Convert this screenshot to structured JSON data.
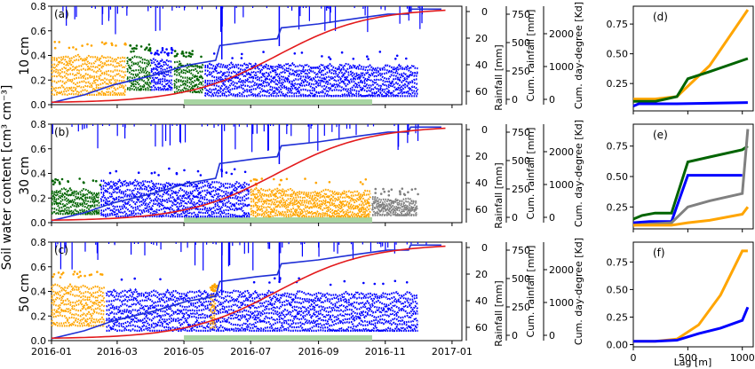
{
  "figure": {
    "shared_ylabel": "Soil water content [cm³ cm⁻³]",
    "shared_xlabel": "Lag [m]"
  },
  "chart_data": [
    {
      "type": "scatter",
      "panel": "(a)",
      "depth_label": "10 cm",
      "x_ticks": [
        "2016-01",
        "2016-03",
        "2016-05",
        "2016-07",
        "2016-09",
        "2016-11",
        "2017-01"
      ],
      "ylim": [
        0,
        0.8
      ],
      "y_ticks": [
        "0.0",
        "0.2",
        "0.4",
        "0.6",
        "0.8"
      ],
      "rain_axis": {
        "label": "Rainfall [mm]",
        "ticks": [
          "0",
          "20",
          "40",
          "60"
        ]
      },
      "cum_rain_axis": {
        "label": "Cum. rainfall [mm]",
        "ticks": [
          "0",
          "250",
          "500",
          "750"
        ]
      },
      "cum_dd_axis": {
        "label": "Cum. day-degree [Kd]",
        "ticks": [
          "0",
          "1000",
          "2000"
        ]
      },
      "swc_segments": [
        {
          "color": "#FFA500",
          "start": "2016-01-01",
          "end": "2016-03-10",
          "low": 0.08,
          "high": 0.45
        },
        {
          "color": "#006400",
          "start": "2016-03-10",
          "end": "2016-04-01",
          "low": 0.12,
          "high": 0.43
        },
        {
          "color": "#0000FF",
          "start": "2016-04-01",
          "end": "2016-04-22",
          "low": 0.12,
          "high": 0.4
        },
        {
          "color": "#006400",
          "start": "2016-04-22",
          "end": "2016-05-20",
          "low": 0.1,
          "high": 0.38
        },
        {
          "color": "#0000FF",
          "start": "2016-05-20",
          "end": "2016-12-01",
          "low": 0.07,
          "high": 0.37
        }
      ],
      "green_bar": {
        "start": "2016-05-01",
        "end": "2016-10-20"
      }
    },
    {
      "type": "scatter",
      "panel": "(b)",
      "depth_label": "30 cm",
      "x_ticks": [
        "2016-01",
        "2016-03",
        "2016-05",
        "2016-07",
        "2016-09",
        "2016-11",
        "2017-01"
      ],
      "ylim": [
        0,
        0.8
      ],
      "y_ticks": [
        "0.0",
        "0.2",
        "0.4",
        "0.6",
        "0.8"
      ],
      "rain_axis": {
        "label": "Rainfall [mm]",
        "ticks": [
          "0",
          "20",
          "40",
          "60"
        ]
      },
      "cum_rain_axis": {
        "label": "Cum. rainfall [mm]",
        "ticks": [
          "0",
          "250",
          "500",
          "750"
        ]
      },
      "cum_dd_axis": {
        "label": "Cum. day-degree [Kd]",
        "ticks": [
          "0",
          "1000",
          "2000"
        ]
      },
      "swc_segments": [
        {
          "color": "#006400",
          "start": "2016-01-01",
          "end": "2016-02-15",
          "low": 0.07,
          "high": 0.3
        },
        {
          "color": "#0000FF",
          "start": "2016-02-15",
          "end": "2016-07-01",
          "low": 0.05,
          "high": 0.38
        },
        {
          "color": "#FFA500",
          "start": "2016-07-01",
          "end": "2016-10-20",
          "low": 0.05,
          "high": 0.3
        },
        {
          "color": "#808080",
          "start": "2016-10-20",
          "end": "2016-12-01",
          "low": 0.06,
          "high": 0.22
        }
      ],
      "green_bar": {
        "start": "2016-05-01",
        "end": "2016-10-20"
      }
    },
    {
      "type": "scatter",
      "panel": "(c)",
      "depth_label": "50 cm",
      "x_ticks": [
        "2016-01",
        "2016-03",
        "2016-05",
        "2016-07",
        "2016-09",
        "2016-11",
        "2017-01"
      ],
      "ylim": [
        0,
        0.8
      ],
      "y_ticks": [
        "0.0",
        "0.2",
        "0.4",
        "0.6",
        "0.8"
      ],
      "rain_axis": {
        "label": "Rainfall [mm]",
        "ticks": [
          "0",
          "20",
          "40",
          "60"
        ]
      },
      "cum_rain_axis": {
        "label": "Cum. rainfall [mm]",
        "ticks": [
          "0",
          "250",
          "500",
          "750"
        ]
      },
      "cum_dd_axis": {
        "label": "Cum. day-degree [Kd]",
        "ticks": [
          "0",
          "1000",
          "2000"
        ]
      },
      "swc_segments": [
        {
          "color": "#FFA500",
          "start": "2016-01-01",
          "end": "2016-02-20",
          "low": 0.12,
          "high": 0.5
        },
        {
          "color": "#0000FF",
          "start": "2016-02-20",
          "end": "2016-12-01",
          "low": 0.08,
          "high": 0.45
        },
        {
          "color": "#FFA500",
          "start": "2016-05-25",
          "end": "2016-06-01",
          "low": 0.1,
          "high": 0.4
        }
      ],
      "green_bar": {
        "start": "2016-05-01",
        "end": "2016-10-20"
      }
    },
    {
      "type": "line",
      "panel": "(d)",
      "x_ticks": [
        "0",
        "500",
        "1000"
      ],
      "y_ticks": [
        "0.25",
        "0.50",
        "0.75"
      ],
      "xlim": [
        0,
        1100
      ],
      "ylim": [
        0.02,
        0.9
      ],
      "series": [
        {
          "color": "#FFA500",
          "x": [
            0,
            200,
            400,
            700,
            1050
          ],
          "y": [
            0.12,
            0.12,
            0.14,
            0.4,
            0.87
          ]
        },
        {
          "color": "#006400",
          "x": [
            0,
            200,
            300,
            400,
            500,
            700,
            1050
          ],
          "y": [
            0.1,
            0.1,
            0.12,
            0.14,
            0.29,
            0.35,
            0.46
          ]
        },
        {
          "color": "#0000FF",
          "x": [
            0,
            50,
            400,
            1050
          ],
          "y": [
            0.06,
            0.08,
            0.08,
            0.09
          ]
        }
      ]
    },
    {
      "type": "line",
      "panel": "(e)",
      "x_ticks": [
        "0",
        "500",
        "1000"
      ],
      "y_ticks": [
        "0.25",
        "0.50",
        "0.75"
      ],
      "xlim": [
        0,
        1100
      ],
      "ylim": [
        0.07,
        0.93
      ],
      "series": [
        {
          "color": "#006400",
          "x": [
            0,
            80,
            200,
            350,
            500,
            700,
            1000,
            1050
          ],
          "y": [
            0.15,
            0.18,
            0.2,
            0.2,
            0.62,
            0.66,
            0.72,
            0.75
          ]
        },
        {
          "color": "#0000FF",
          "x": [
            0,
            150,
            350,
            500,
            700,
            1000
          ],
          "y": [
            0.12,
            0.13,
            0.13,
            0.51,
            0.51,
            0.51
          ]
        },
        {
          "color": "#808080",
          "x": [
            0,
            150,
            350,
            500,
            700,
            1000,
            1050
          ],
          "y": [
            0.1,
            0.11,
            0.12,
            0.25,
            0.3,
            0.36,
            0.89
          ]
        },
        {
          "color": "#FFA500",
          "x": [
            0,
            150,
            350,
            500,
            700,
            1000,
            1050
          ],
          "y": [
            0.1,
            0.1,
            0.1,
            0.12,
            0.14,
            0.19,
            0.25
          ]
        }
      ]
    },
    {
      "type": "line",
      "panel": "(f)",
      "x_ticks": [
        "0",
        "500",
        "1000"
      ],
      "y_ticks": [
        "0.00",
        "0.25",
        "0.50",
        "0.75"
      ],
      "xlim": [
        0,
        1100
      ],
      "ylim": [
        -0.02,
        0.93
      ],
      "xlabel": "Lag [m]",
      "series": [
        {
          "color": "#FFA500",
          "x": [
            0,
            200,
            400,
            600,
            800,
            1000,
            1050
          ],
          "y": [
            0.03,
            0.03,
            0.05,
            0.18,
            0.45,
            0.85,
            0.85
          ]
        },
        {
          "color": "#0000FF",
          "x": [
            0,
            200,
            400,
            600,
            800,
            1000,
            1050
          ],
          "y": [
            0.03,
            0.03,
            0.04,
            0.1,
            0.15,
            0.22,
            0.34
          ]
        }
      ]
    }
  ]
}
